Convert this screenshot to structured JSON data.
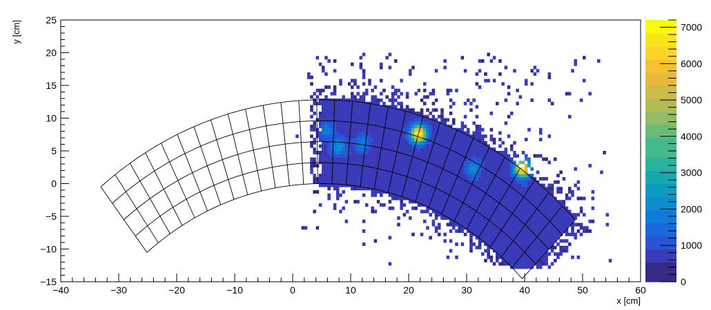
{
  "chart_data": {
    "type": "heatmap",
    "xlabel": "x [cm]",
    "ylabel": "y [cm]",
    "xlim": [
      -40,
      60
    ],
    "ylim": [
      -15,
      25
    ],
    "xticks": [
      -40,
      -30,
      -20,
      -10,
      0,
      10,
      20,
      30,
      40,
      50,
      60
    ],
    "yticks": [
      -15,
      -10,
      -5,
      0,
      5,
      10,
      15,
      20,
      25
    ],
    "zlim": [
      0,
      7200
    ],
    "zticks": [
      0,
      1000,
      2000,
      3000,
      4000,
      5000,
      6000,
      7000
    ],
    "palette": [
      "#352a87",
      "#3a3bb9",
      "#2a54d6",
      "#1a68dc",
      "#117bd9",
      "#0b8dcf",
      "#0a9cc2",
      "#14a8b1",
      "#29b29e",
      "#46b98a",
      "#6abb78",
      "#8fbc66",
      "#b2bc56",
      "#d0ba47",
      "#e6b93a",
      "#f7c130",
      "#fbd523",
      "#f9e519",
      "#f9fb0e"
    ],
    "grid": {
      "center": [
        5,
        -48.4
      ],
      "radii_cm": [
        48.4,
        51.6,
        54.8,
        58.0,
        61.2
      ],
      "angle_edges_deg": [
        -38.5,
        -35.6,
        -32.7,
        -29.8,
        -26.9,
        -24.0,
        -21.1,
        -18.2,
        -15.3,
        -12.4,
        -9.5,
        -6.6,
        -3.7,
        -0.8,
        2.1,
        5.0,
        7.9,
        10.8,
        13.7,
        16.6,
        19.5,
        22.4,
        25.3,
        28.2,
        31.1,
        34.0,
        36.9,
        39.8,
        42.7,
        45.6
      ]
    },
    "hotspots": [
      {
        "x": 21.7,
        "y": 7.6,
        "peak": 7200
      },
      {
        "x": 39.6,
        "y": 2.3,
        "peak": 6800
      },
      {
        "x": 8.0,
        "y": 5.7,
        "peak": 1600
      },
      {
        "x": 31.2,
        "y": 2.4,
        "peak": 1500
      },
      {
        "x": 12.0,
        "y": 6.2,
        "peak": 1300
      },
      {
        "x": 5.8,
        "y": 8.2,
        "peak": 1200
      }
    ]
  }
}
